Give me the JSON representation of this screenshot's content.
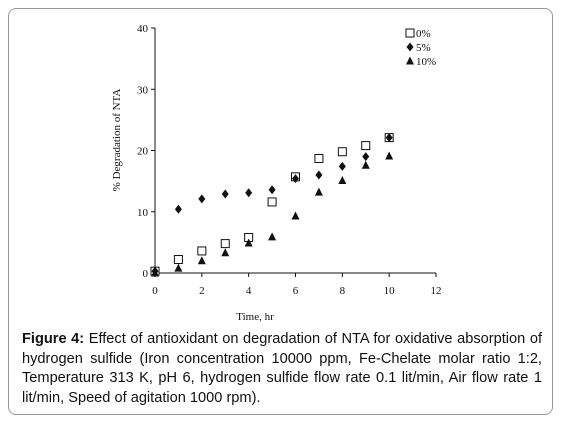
{
  "chart_data": {
    "type": "scatter",
    "title": "",
    "xlabel": "Time, hr",
    "ylabel": "% Degradation of NTA",
    "xlim": [
      0,
      12
    ],
    "ylim": [
      0,
      40
    ],
    "xticks": [
      0,
      2,
      4,
      6,
      8,
      10,
      12
    ],
    "yticks": [
      0,
      10,
      20,
      30,
      40
    ],
    "grid": false,
    "legend_position": "top-right",
    "series": [
      {
        "name": "0%",
        "marker": "open-square",
        "x": [
          0,
          1,
          2,
          3,
          4,
          5,
          6,
          7,
          8,
          9,
          10
        ],
        "y": [
          0.3,
          2.2,
          3.6,
          4.8,
          5.8,
          11.6,
          15.7,
          18.7,
          19.8,
          20.8,
          22.1
        ]
      },
      {
        "name": "5%",
        "marker": "filled-diamond",
        "x": [
          0,
          1,
          2,
          3,
          4,
          5,
          6,
          7,
          8,
          9,
          10
        ],
        "y": [
          0.3,
          10.4,
          12.1,
          12.9,
          13.1,
          13.6,
          15.4,
          16.0,
          17.4,
          19.0,
          22.1
        ]
      },
      {
        "name": "10%",
        "marker": "filled-triangle",
        "x": [
          0,
          1,
          2,
          3,
          4,
          5,
          6,
          7,
          8,
          9,
          10
        ],
        "y": [
          0.0,
          0.8,
          2.0,
          3.3,
          4.9,
          5.9,
          9.3,
          13.2,
          15.1,
          17.6,
          19.1
        ]
      }
    ]
  },
  "caption": {
    "label": "Figure 4:",
    "text": " Effect of antioxidant on degradation of NTA for oxidative absorption of hydrogen sulfide (Iron concentration 10000 ppm, Fe-Chelate molar ratio 1:2, Temperature 313 K, pH 6, hydrogen sulfide flow rate 0.1 lit/min, Air flow rate 1 lit/min, Speed of agitation 1000 rpm)."
  }
}
